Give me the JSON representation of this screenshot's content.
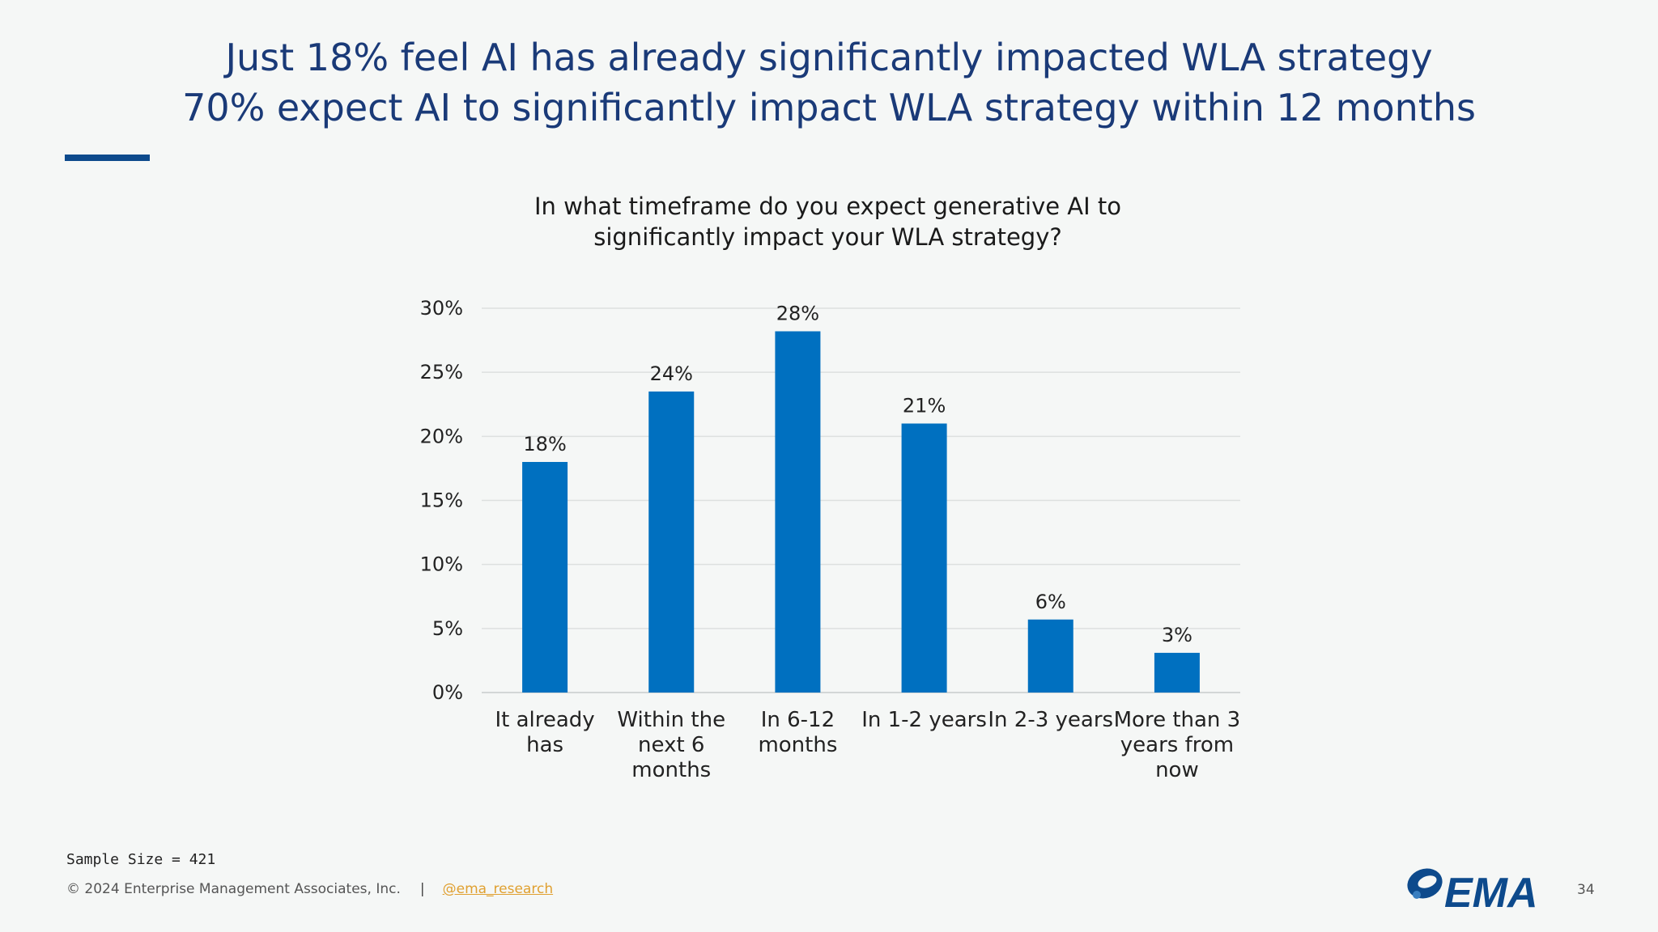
{
  "headline": {
    "line1": "Just 18% feel AI has already significantly impacted WLA strategy",
    "line2": "70% expect AI to significantly impact WLA strategy within 12 months"
  },
  "chart_data": {
    "type": "bar",
    "title_lines": [
      "In what timeframe do you expect generative AI to",
      "significantly impact your WLA strategy?"
    ],
    "categories": [
      [
        "It already",
        "has"
      ],
      [
        "Within the",
        "next 6",
        "months"
      ],
      [
        "In 6-12",
        "months"
      ],
      [
        "In 1-2 years"
      ],
      [
        "In 2-3 years"
      ],
      [
        "More than 3",
        "years from",
        "now"
      ]
    ],
    "values": [
      18,
      23.5,
      28.2,
      21,
      5.7,
      3.1
    ],
    "data_labels": [
      "18%",
      "24%",
      "28%",
      "21%",
      "6%",
      "3%"
    ],
    "y_ticks": [
      "0%",
      "5%",
      "10%",
      "15%",
      "20%",
      "25%",
      "30%"
    ],
    "ylim": [
      0,
      30
    ],
    "grid": true,
    "bar_color": "#0070c0"
  },
  "footer": {
    "sample_size": "Sample Size = 421",
    "copyright": "© 2024 Enterprise Management Associates, Inc.",
    "separator": "|",
    "handle": "@ema_research",
    "page_number": "34",
    "logo_text": "EMA"
  }
}
